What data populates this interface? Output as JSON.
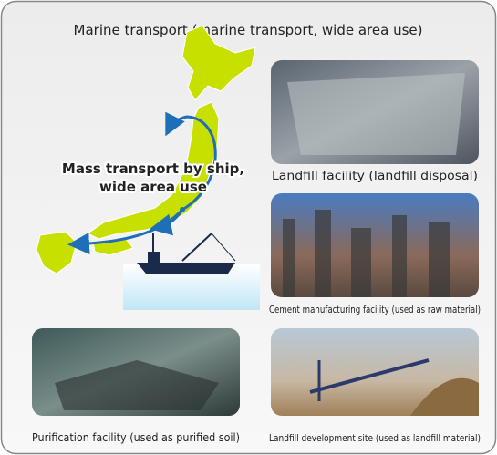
{
  "title": "Marine transport (marine transport, wide area use)",
  "map_label": {
    "lines": [
      "Mass transport by ship,",
      "wide area use"
    ]
  },
  "facilities": [
    {
      "caption": "Landfill facility (landfill disposal)"
    },
    {
      "caption": "Cement manufacturing facility (used as raw material)"
    },
    {
      "caption": "Purification facility (used as purified soil)"
    },
    {
      "caption": "Landfill development site (used as landfill material)"
    }
  ]
}
